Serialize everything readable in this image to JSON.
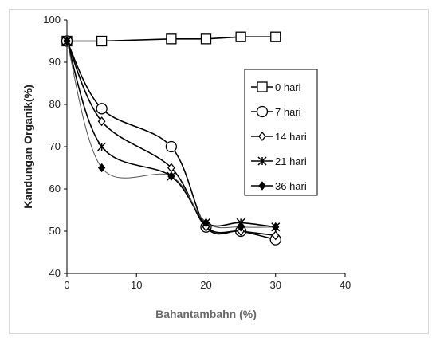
{
  "chart_data": {
    "type": "line",
    "title": "",
    "xlabel": "Bahantambahn (%)",
    "ylabel": "Kandungan Organik(%)",
    "xlim": [
      0,
      40
    ],
    "ylim": [
      40,
      100
    ],
    "xticks": [
      "0",
      "10",
      "20",
      "30",
      "40"
    ],
    "yticks": [
      "40",
      "50",
      "60",
      "70",
      "80",
      "90",
      "100"
    ],
    "grid": false,
    "legend_position": "right",
    "series": [
      {
        "name": "0 hari",
        "marker": "square",
        "smooth": false,
        "color": "#000000",
        "x": [
          0,
          5,
          15,
          20,
          25,
          30
        ],
        "y": [
          95,
          95,
          95.5,
          95.5,
          96,
          96
        ]
      },
      {
        "name": "7 hari",
        "marker": "circle",
        "smooth": true,
        "color": "#000000",
        "x": [
          0,
          5,
          15,
          20,
          25,
          30
        ],
        "y": [
          95,
          79,
          70,
          51,
          50,
          48
        ]
      },
      {
        "name": "14 hari",
        "marker": "diamond",
        "smooth": true,
        "color": "#000000",
        "x": [
          0,
          5,
          15,
          20,
          25,
          30
        ],
        "y": [
          95,
          76,
          65,
          51,
          50,
          49
        ]
      },
      {
        "name": "21 hari",
        "marker": "star",
        "smooth": true,
        "color": "#000000",
        "x": [
          0,
          5,
          15,
          20,
          25,
          30
        ],
        "y": [
          95,
          70,
          63,
          52,
          52,
          51
        ]
      },
      {
        "name": "36 hari",
        "marker": "filled-diamond",
        "smooth": true,
        "color": "#555555",
        "x": [
          0,
          5,
          15,
          20,
          25,
          30
        ],
        "y": [
          95,
          65,
          63,
          52,
          51,
          51
        ]
      }
    ]
  }
}
